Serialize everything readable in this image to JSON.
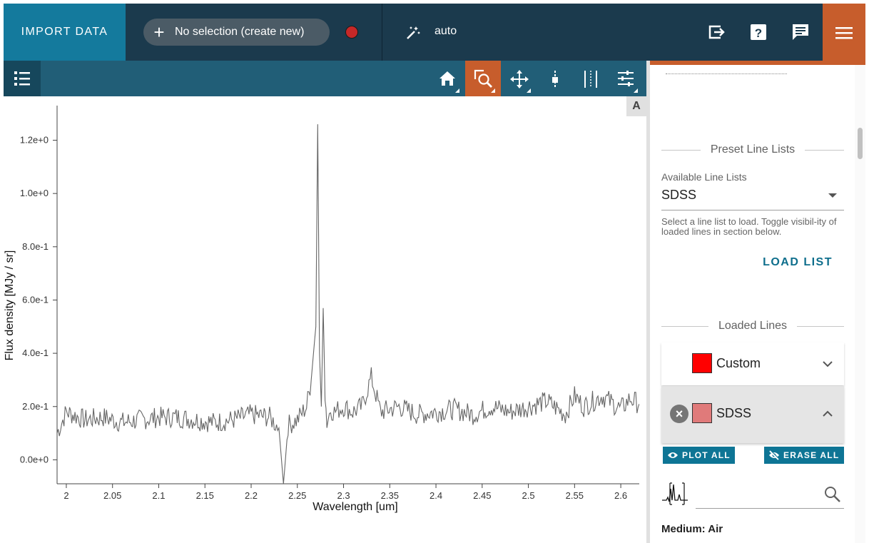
{
  "appbar": {
    "import_label": "IMPORT DATA",
    "selection_label": "No selection (create new)",
    "auto_label": "auto",
    "colors": {
      "bar": "#1b3a4d",
      "import": "#147a9d",
      "accent": "#c75d2c",
      "record": "#c62828"
    },
    "icons": [
      "export-icon",
      "help-icon",
      "feedback-icon",
      "menu-icon"
    ]
  },
  "viewer_toolbar": {
    "tools": [
      "home-icon",
      "zoom-box-icon",
      "pan-icon",
      "line-select-icon",
      "range-select-icon",
      "settings-icon"
    ],
    "active_tool": "zoom-box-icon",
    "a_button": "A"
  },
  "chart_data": {
    "type": "line",
    "xlabel": "Wavelength [um]",
    "ylabel": "Flux density [MJy / sr]",
    "xlim": [
      1.99,
      2.62
    ],
    "ylim": [
      -0.09,
      1.33
    ],
    "xticks": [
      "2",
      "2.05",
      "2.1",
      "2.15",
      "2.2",
      "2.25",
      "2.3",
      "2.35",
      "2.4",
      "2.45",
      "2.5",
      "2.55",
      "2.6"
    ],
    "xtick_values": [
      2.0,
      2.05,
      2.1,
      2.15,
      2.2,
      2.25,
      2.3,
      2.35,
      2.4,
      2.45,
      2.5,
      2.55,
      2.6
    ],
    "yticks": [
      "0.0e+0",
      "2.0e-1",
      "4.0e-1",
      "6.0e-1",
      "8.0e-1",
      "1.0e+0",
      "1.2e+0"
    ],
    "ytick_values": [
      0.0,
      0.2,
      0.4,
      0.6,
      0.8,
      1.0,
      1.2
    ],
    "series": [
      {
        "color": "#666666",
        "x": [
          1.99,
          2.0,
          2.02,
          2.04,
          2.06,
          2.08,
          2.1,
          2.12,
          2.14,
          2.16,
          2.18,
          2.2,
          2.22,
          2.23,
          2.235,
          2.24,
          2.25,
          2.26,
          2.265,
          2.27,
          2.272,
          2.274,
          2.276,
          2.278,
          2.28,
          2.282,
          2.286,
          2.29,
          2.3,
          2.31,
          2.32,
          2.33,
          2.34,
          2.36,
          2.38,
          2.4,
          2.42,
          2.44,
          2.46,
          2.48,
          2.5,
          2.52,
          2.54,
          2.55,
          2.56,
          2.58,
          2.6,
          2.61,
          2.62
        ],
        "y": [
          0.1,
          0.18,
          0.15,
          0.16,
          0.14,
          0.15,
          0.16,
          0.16,
          0.15,
          0.14,
          0.15,
          0.17,
          0.16,
          0.12,
          -0.09,
          0.13,
          0.15,
          0.2,
          0.3,
          0.5,
          1.26,
          0.4,
          0.2,
          0.57,
          0.25,
          0.14,
          0.19,
          0.18,
          0.2,
          0.18,
          0.2,
          0.31,
          0.18,
          0.2,
          0.17,
          0.18,
          0.19,
          0.17,
          0.2,
          0.18,
          0.2,
          0.22,
          0.17,
          0.24,
          0.2,
          0.24,
          0.19,
          0.23,
          0.21
        ]
      }
    ]
  },
  "tray": {
    "preset_title": "Preset Line Lists",
    "available_label": "Available Line Lists",
    "selected_list": "SDSS",
    "hint": "Select a line list to load. Toggle visibil-ity of loaded lines in section below.",
    "load_button": "LOAD LIST",
    "loaded_title": "Loaded Lines",
    "lists": [
      {
        "name": "Custom",
        "color": "#ff0000",
        "expanded": false
      },
      {
        "name": "SDSS",
        "color": "#e07a7a",
        "expanded": true
      }
    ],
    "plot_all": "PLOT ALL",
    "erase_all": "ERASE ALL",
    "medium": "Medium: Air"
  }
}
